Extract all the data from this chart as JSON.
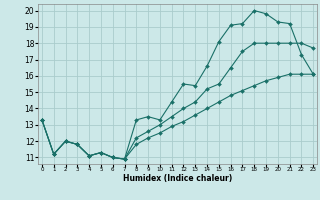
{
  "xlabel": "Humidex (Indice chaleur)",
  "bg_color": "#cce8e8",
  "grid_color": "#aacccc",
  "line_color": "#1a7068",
  "xticks": [
    0,
    1,
    2,
    3,
    4,
    5,
    6,
    7,
    8,
    9,
    10,
    11,
    12,
    13,
    14,
    15,
    16,
    17,
    18,
    19,
    20,
    21,
    22,
    23
  ],
  "yticks": [
    11,
    12,
    13,
    14,
    15,
    16,
    17,
    18,
    19,
    20
  ],
  "xlim": [
    -0.3,
    23.3
  ],
  "ylim": [
    10.6,
    20.4
  ],
  "line1_x": [
    0,
    1,
    2,
    3,
    4,
    5,
    6,
    7,
    8,
    9,
    10,
    11,
    12,
    13,
    14,
    15,
    16,
    17,
    18,
    19,
    20,
    21,
    22,
    23
  ],
  "line1_y": [
    13.3,
    11.2,
    12.0,
    11.8,
    11.1,
    11.3,
    11.0,
    10.9,
    13.3,
    13.5,
    13.3,
    14.4,
    15.5,
    15.4,
    16.6,
    18.1,
    19.1,
    19.2,
    20.0,
    19.8,
    19.3,
    19.2,
    17.3,
    16.1
  ],
  "line2_x": [
    0,
    1,
    2,
    3,
    4,
    5,
    6,
    7,
    8,
    9,
    10,
    11,
    12,
    13,
    14,
    15,
    16,
    17,
    18,
    19,
    20,
    21,
    22,
    23
  ],
  "line2_y": [
    13.3,
    11.2,
    12.0,
    11.8,
    11.1,
    11.3,
    11.0,
    10.9,
    12.2,
    12.6,
    13.0,
    13.5,
    14.0,
    14.4,
    15.2,
    15.5,
    16.5,
    17.5,
    18.0,
    18.0,
    18.0,
    18.0,
    18.0,
    17.7
  ],
  "line3_x": [
    0,
    1,
    2,
    3,
    4,
    5,
    6,
    7,
    8,
    9,
    10,
    11,
    12,
    13,
    14,
    15,
    16,
    17,
    18,
    19,
    20,
    21,
    22,
    23
  ],
  "line3_y": [
    13.3,
    11.2,
    12.0,
    11.8,
    11.1,
    11.3,
    11.0,
    10.9,
    11.8,
    12.2,
    12.5,
    12.9,
    13.2,
    13.6,
    14.0,
    14.4,
    14.8,
    15.1,
    15.4,
    15.7,
    15.9,
    16.1,
    16.1,
    16.1
  ]
}
